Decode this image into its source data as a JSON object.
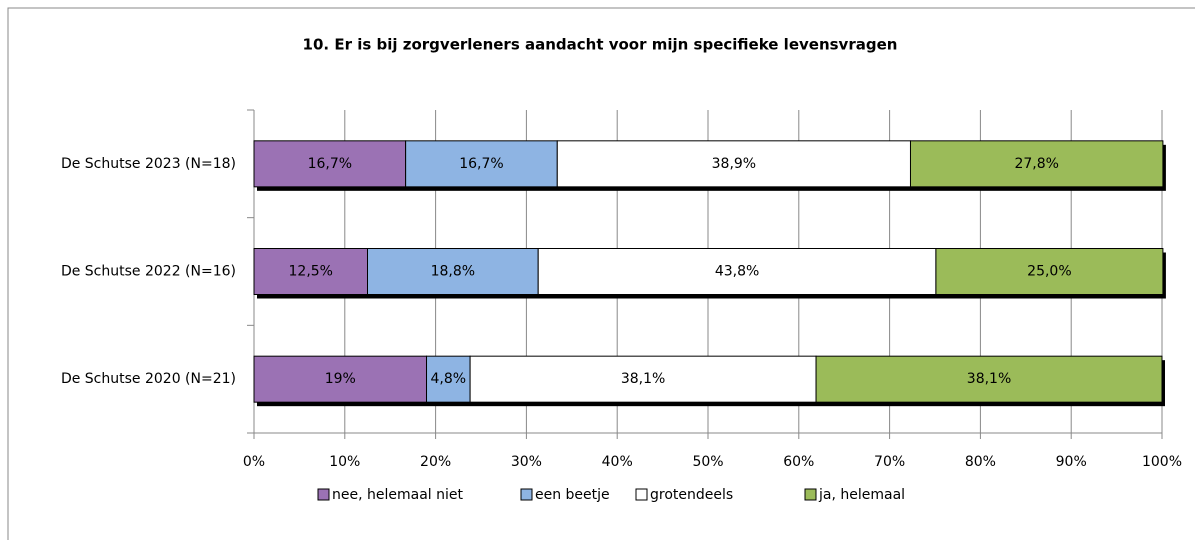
{
  "chart_data": {
    "type": "stacked-barh",
    "title": "10. Er is bij zorgverleners aandacht voor mijn specifieke levensvragen",
    "categories": [
      "De Schutse 2023 (N=18)",
      "De Schutse 2022 (N=16)",
      "De Schutse 2020 (N=21)"
    ],
    "series": [
      {
        "name": "nee, helemaal niet",
        "color": "#9b72b4",
        "values": [
          16.7,
          12.5,
          19
        ],
        "value_labels": [
          "16,7%",
          "12,5%",
          "19%"
        ]
      },
      {
        "name": "een beetje",
        "color": "#8eb4e3",
        "values": [
          16.7,
          18.8,
          4.8
        ],
        "value_labels": [
          "16,7%",
          "18,8%",
          "4,8%"
        ]
      },
      {
        "name": "grotendeels",
        "color": "#ffffff",
        "values": [
          38.9,
          43.8,
          38.1
        ],
        "value_labels": [
          "38,9%",
          "43,8%",
          "38,1%"
        ]
      },
      {
        "name": "ja, helemaal",
        "color": "#9bbb59",
        "values": [
          27.8,
          25.0,
          38.1
        ],
        "value_labels": [
          "27,8%",
          "25,0%",
          "38,1%"
        ]
      }
    ],
    "xlim": [
      0,
      100
    ],
    "xticks": [
      {
        "value": 0,
        "label": "0%"
      },
      {
        "value": 10,
        "label": "10%"
      },
      {
        "value": 20,
        "label": "20%"
      },
      {
        "value": 30,
        "label": "30%"
      },
      {
        "value": 40,
        "label": "40%"
      },
      {
        "value": 50,
        "label": "50%"
      },
      {
        "value": 60,
        "label": "60%"
      },
      {
        "value": 70,
        "label": "70%"
      },
      {
        "value": 80,
        "label": "80%"
      },
      {
        "value": 90,
        "label": "90%"
      },
      {
        "value": 100,
        "label": "100%"
      }
    ],
    "grid": true,
    "legend": "bottom"
  }
}
